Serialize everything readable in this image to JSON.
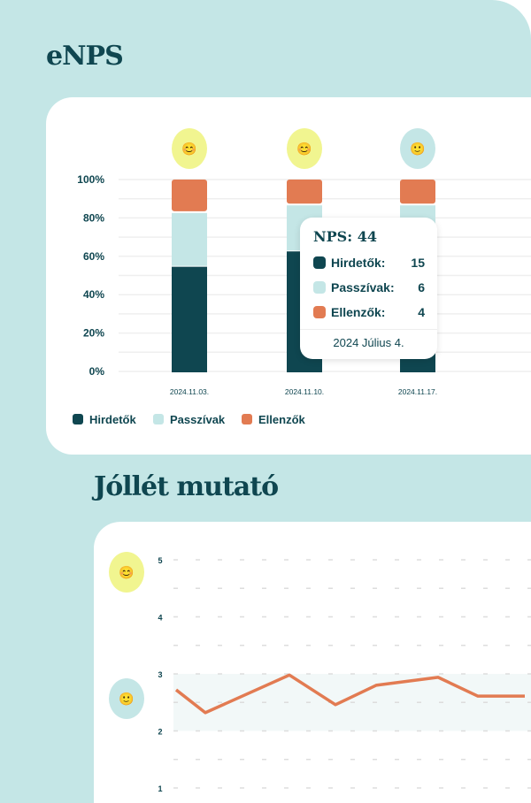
{
  "enps": {
    "title": "eNPS",
    "colors": {
      "Hirdetők": "#0f4650",
      "Passzívak": "#c4e6e6",
      "Ellenzők": "#e27b52"
    },
    "emoji_badges": [
      {
        "emoji": "😊",
        "bg": "#f1f590",
        "icon": "smiling-face-icon"
      },
      {
        "emoji": "😊",
        "bg": "#f1f590",
        "icon": "smiling-face-icon"
      },
      {
        "emoji": "🙂",
        "bg": "#c4e6e6",
        "icon": "neutral-face-icon"
      }
    ],
    "tooltip": {
      "nps": "NPS: 44",
      "rows": [
        {
          "label": "Hirdetők:",
          "value": "15"
        },
        {
          "label": "Passzívak:",
          "value": "6"
        },
        {
          "label": "Ellenzők:",
          "value": "4"
        }
      ],
      "date": "2024 Július 4."
    },
    "legend": [
      "Hirdetők",
      "Passzívak",
      "Ellenzők"
    ]
  },
  "wellbeing": {
    "title": "Jóllét mutató",
    "emoji_badges": [
      {
        "emoji": "😊",
        "bg": "#f1f590",
        "icon": "smiling-face-icon"
      },
      {
        "emoji": "🙂",
        "bg": "#c4e6e6",
        "icon": "slight-smile-icon"
      }
    ]
  },
  "chart_data": [
    {
      "type": "bar",
      "stacked": true,
      "categories": [
        "2024.11.03.",
        "2024.11.10.",
        "2024.11.17."
      ],
      "series": [
        {
          "name": "Hirdetők",
          "values": [
            55,
            63,
            63
          ]
        },
        {
          "name": "Passzívak",
          "values": [
            28,
            24,
            24
          ]
        },
        {
          "name": "Ellenzők",
          "values": [
            17,
            13,
            13
          ]
        }
      ],
      "yticks": [
        "0%",
        "20%",
        "40%",
        "60%",
        "80%",
        "100%"
      ],
      "ylim": [
        0,
        100
      ],
      "grid": true,
      "legend": "bottom-left"
    },
    {
      "type": "line",
      "values": [
        2.72,
        2.32,
        2.98,
        2.46,
        2.8,
        2.94,
        2.61,
        2.61
      ],
      "yticks": [
        "1",
        "2",
        "3",
        "4",
        "5"
      ],
      "ylim": [
        1,
        5
      ],
      "highlight_band": [
        2,
        3
      ],
      "line_color": "#e27b52",
      "grid": "dashed"
    }
  ]
}
